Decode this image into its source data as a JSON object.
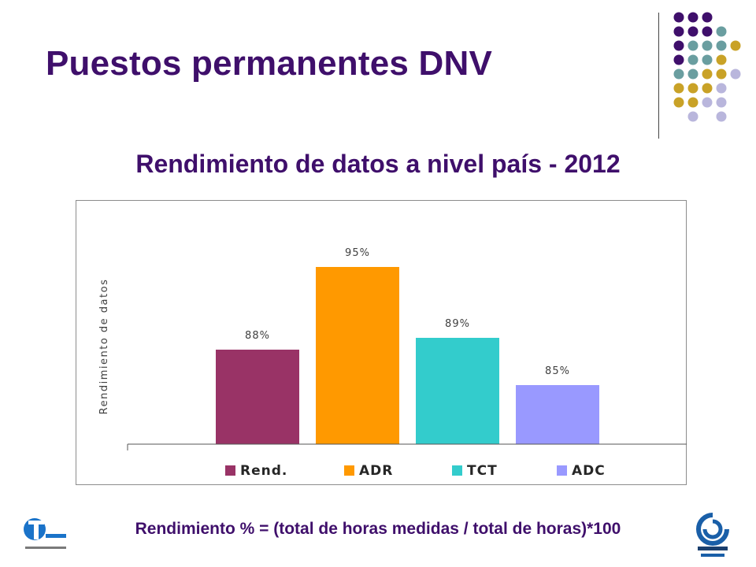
{
  "slide": {
    "title": "Puestos permanentes DNV",
    "formula": "Rendimiento % = (total de horas medidas / total de horas)*100"
  },
  "chart_data": {
    "type": "bar",
    "title": "Rendimiento de datos a nivel país - 2012",
    "ylabel": "Rendimiento de datos",
    "xlabel": "",
    "ylim": [
      80,
      100
    ],
    "grid": false,
    "legend_position": "bottom",
    "series": [
      {
        "name": "Rend.",
        "value": 88,
        "label": "88%",
        "color": "#993366"
      },
      {
        "name": "ADR",
        "value": 95,
        "label": "95%",
        "color": "#ff9900"
      },
      {
        "name": "TCT",
        "value": 89,
        "label": "89%",
        "color": "#33cccc"
      },
      {
        "name": "ADC",
        "value": 85,
        "label": "85%",
        "color": "#9999ff"
      }
    ]
  },
  "colors": {
    "title": "#3f0f6b",
    "dot_purple": "#3f0f6b",
    "dot_teal": "#6a9ea0",
    "dot_gold": "#c9a227",
    "dot_lavender": "#b9b6dc"
  },
  "icons": {
    "left_logo": "transito-logo-icon",
    "right_logo": "vialidad-nacional-logo-icon"
  }
}
